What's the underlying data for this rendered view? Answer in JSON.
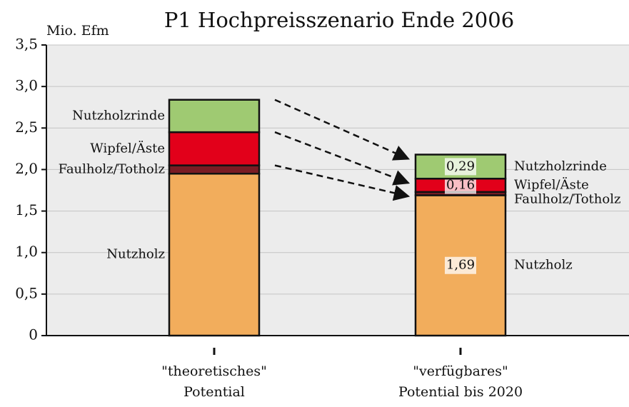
{
  "chart_data": {
    "type": "stacked_bar",
    "title": "P1 Hochpreisszenario Ende 2006",
    "y_axis_label": "Mio. Efm",
    "categories": [
      "\"theoretisches\"\nPotential",
      "\"verfügbares\"\nPotential bis 2020"
    ],
    "series": [
      {
        "name": "Nutzholz",
        "color": "#f2ad5c",
        "values": [
          1.95,
          1.69
        ],
        "value_labels": [
          null,
          "1,69"
        ]
      },
      {
        "name": "Faulholz/Totholz",
        "color": "#7a1c24",
        "values": [
          0.1,
          0.04
        ]
      },
      {
        "name": "Wipfel/Äste",
        "color": "#e2001a",
        "values": [
          0.4,
          0.16
        ],
        "value_labels": [
          null,
          "0,16"
        ]
      },
      {
        "name": "Nutzholzrinde",
        "color": "#9fca72",
        "values": [
          0.39,
          0.29
        ],
        "value_labels": [
          null,
          "0,29"
        ]
      }
    ],
    "ylim": [
      0,
      3.5
    ],
    "yticks": [
      0,
      {
        "value": 0.5,
        "label": "0,5"
      },
      {
        "value": 1.0,
        "label": "1,0"
      },
      {
        "value": 1.5,
        "label": "1,5"
      },
      {
        "value": 2.0,
        "label": "2,0"
      },
      {
        "value": 2.5,
        "label": "2,5"
      },
      {
        "value": 3.0,
        "label": "3,0"
      },
      {
        "value": 3.5,
        "label": "3,5"
      }
    ],
    "grid": true
  }
}
